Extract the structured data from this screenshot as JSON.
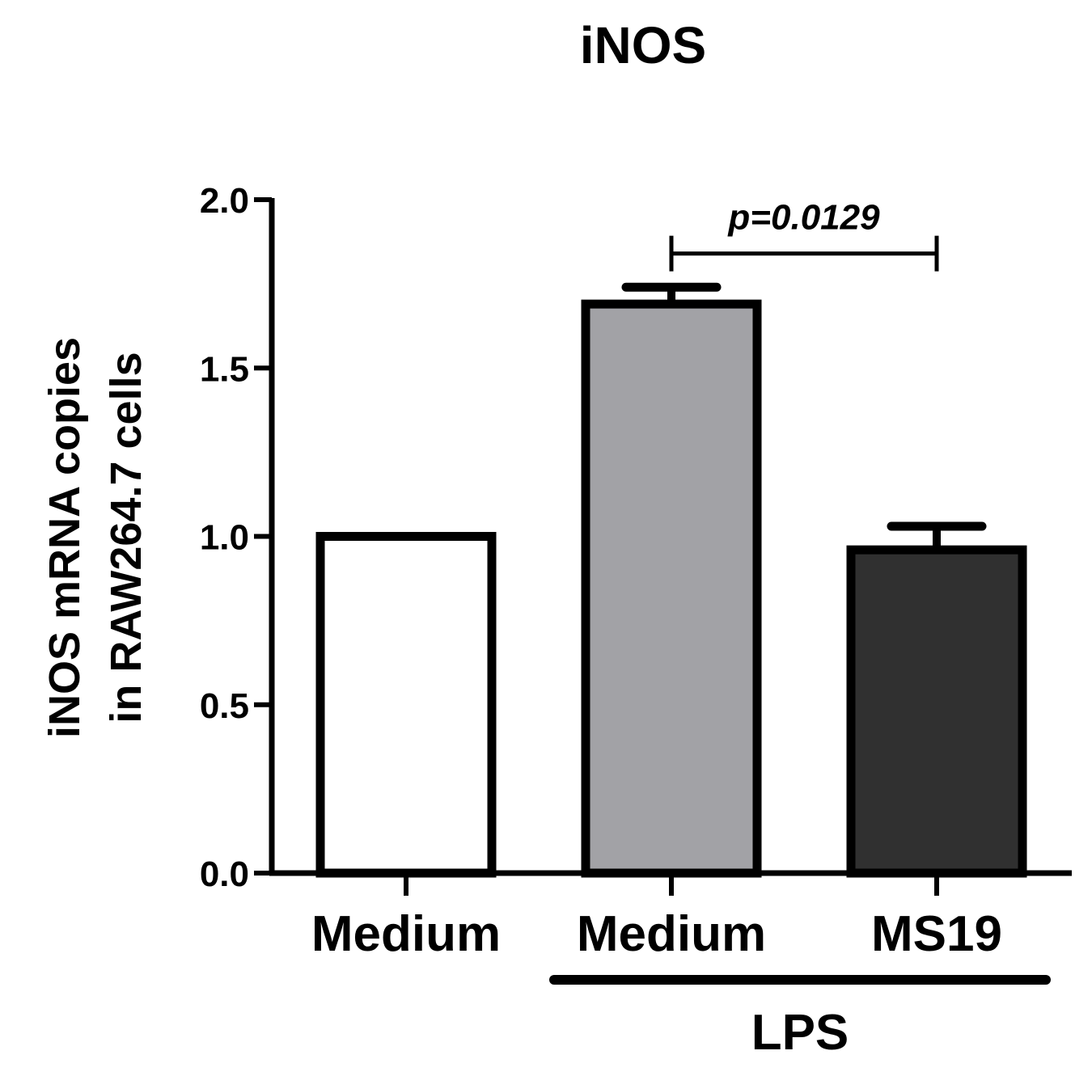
{
  "chart_data": {
    "type": "bar",
    "title": "iNOS",
    "ylabel_lines": [
      "iNOS mRNA copies",
      "in RAW264.7 cells"
    ],
    "xlabel": "",
    "ylim": [
      0,
      2.0
    ],
    "yticks": [
      0.0,
      0.5,
      1.0,
      1.5,
      2.0
    ],
    "ytick_labels": [
      "0.0",
      "0.5",
      "1.0",
      "1.5",
      "2.0"
    ],
    "grid": false,
    "categories": [
      "Medium",
      "Medium",
      "MS19"
    ],
    "values": [
      1.0,
      1.69,
      0.96
    ],
    "errors": [
      0,
      0.05,
      0.07
    ],
    "colors": [
      "#ffffff",
      "#a2a2a6",
      "#303030"
    ],
    "group": {
      "label": "LPS",
      "covers": [
        1,
        2
      ]
    },
    "annotation": {
      "text": "p=0.0129",
      "between": [
        1,
        2
      ],
      "y": 1.84
    }
  }
}
